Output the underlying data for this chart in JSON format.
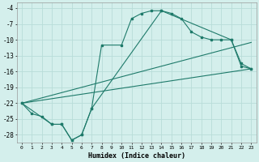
{
  "xlabel": "Humidex (Indice chaleur)",
  "bg_color": "#d4efec",
  "grid_color": "#b8ddd8",
  "line_color": "#1e7a6a",
  "xlim": [
    -0.5,
    23.5
  ],
  "ylim": [
    -29.5,
    -3
  ],
  "yticks": [
    -4,
    -7,
    -10,
    -13,
    -16,
    -19,
    -22,
    -25,
    -28
  ],
  "xticks": [
    0,
    1,
    2,
    3,
    4,
    5,
    6,
    7,
    8,
    9,
    10,
    11,
    12,
    13,
    14,
    15,
    16,
    17,
    18,
    19,
    20,
    21,
    22,
    23
  ],
  "line1_x": [
    0,
    1,
    2,
    3,
    4,
    5,
    6,
    7,
    8,
    10,
    11,
    12,
    13,
    14,
    15,
    16,
    17,
    18,
    19,
    20,
    21,
    22,
    23
  ],
  "line1_y": [
    -22,
    -24,
    -24.5,
    -26,
    -26,
    -29,
    -28,
    -23,
    -11,
    -11,
    -6,
    -5,
    -4.5,
    -4.5,
    -5,
    -6,
    -8.5,
    -9.5,
    -10,
    -10,
    -10,
    -15,
    -15.5
  ],
  "line2_x": [
    0,
    3,
    4,
    5,
    6,
    7,
    14,
    21,
    22,
    23
  ],
  "line2_y": [
    -22,
    -26,
    -26,
    -29,
    -28,
    -23,
    -4.5,
    -10,
    -14.5,
    -15.5
  ],
  "line3_x": [
    0,
    23
  ],
  "line3_y": [
    -22,
    -15.5
  ],
  "line4_x": [
    0,
    23
  ],
  "line4_y": [
    -22,
    -10.5
  ]
}
